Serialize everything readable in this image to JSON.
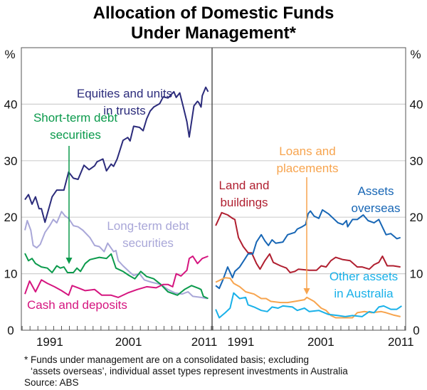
{
  "chart_data": {
    "type": "line",
    "title": [
      "Allocation of Domestic Funds",
      "Under Management*"
    ],
    "ylabel_left": "%",
    "ylabel_right": "%",
    "ylim": [
      0,
      50
    ],
    "yticks": [
      0,
      10,
      20,
      30,
      40
    ],
    "xlim": [
      1987.4,
      2011.6
    ],
    "xtick_labels": [
      "1991",
      "2001",
      "2011"
    ],
    "xticks": [
      1991,
      2001,
      2011
    ],
    "grid": true,
    "footnotes": [
      "*   Funds under management are on a consolidated basis; excluding",
      "‘assets overseas’, individual asset types represent investments in Australia",
      "Source: ABS"
    ],
    "panels": [
      {
        "name": "left",
        "series": [
          {
            "name": "Equities and units in trusts",
            "label": [
              "Equities and units",
              "in trusts"
            ],
            "color": "#2b2b7b",
            "x": [
              1987.85,
              1988.3,
              1988.75,
              1989.2,
              1989.65,
              1989.95,
              1990.4,
              1991.3,
              1991.9,
              1992.5,
              1992.8,
              1993.4,
              1994.0,
              1994.6,
              1995.35,
              1996.0,
              1996.7,
              1997.0,
              1997.75,
              1998.2,
              1998.8,
              1999.1,
              1999.55,
              2000.3,
              2000.9,
              2001.2,
              2001.65,
              2002.4,
              2002.85,
              2003.3,
              2003.75,
              2004.2,
              2004.95,
              2005.4,
              2006.0,
              2006.75,
              2007.05,
              2007.5,
              2007.95,
              2008.4,
              2008.7,
              2009.3,
              2009.75,
              2009.9,
              2010.2,
              2010.35,
              2010.8,
              2011.1
            ],
            "y": [
              23.1,
              24.0,
              22.3,
              23.6,
              21.5,
              21.5,
              19.1,
              23.6,
              24.8,
              24.8,
              24.8,
              28.0,
              26.9,
              26.7,
              29.2,
              28.4,
              29.1,
              29.8,
              30.3,
              28.2,
              29.4,
              29.0,
              30.3,
              33.6,
              34.1,
              33.5,
              36.1,
              35.9,
              35.3,
              37.4,
              38.8,
              39.5,
              40.1,
              41.3,
              41.1,
              42.2,
              41.2,
              42.0,
              39.5,
              36.9,
              34.2,
              39.7,
              40.5,
              40.3,
              39.5,
              41.5,
              43.0,
              42.2
            ]
          },
          {
            "name": "Long-term debt securities",
            "label": [
              "Long-term debt",
              "securities"
            ],
            "color": "#a9a7d8",
            "x": [
              1987.85,
              1988.15,
              1988.6,
              1988.9,
              1989.35,
              1989.8,
              1990.4,
              1991.0,
              1991.45,
              1991.9,
              1992.5,
              1992.95,
              1993.4,
              1994.0,
              1994.6,
              1995.2,
              1996.1,
              1996.7,
              1997.3,
              1997.9,
              1998.35,
              1999.1,
              1999.4,
              1999.7,
              2000.3,
              2001.05,
              2001.65,
              2002.4,
              2003.0,
              2003.9,
              2005.1,
              2006.0,
              2006.9,
              2007.8,
              2008.55,
              2009.15,
              2010.2,
              2010.95
            ],
            "y": [
              17.7,
              19.4,
              17.7,
              15.0,
              14.6,
              15.2,
              17.3,
              18.5,
              19.6,
              19.0,
              21.0,
              20.2,
              19.8,
              18.5,
              18.3,
              17.7,
              16.4,
              15.0,
              14.8,
              13.9,
              15.4,
              13.9,
              14.1,
              12.3,
              11.4,
              10.4,
              9.7,
              10.0,
              8.9,
              8.5,
              8.1,
              7.2,
              6.6,
              6.4,
              6.8,
              6.0,
              5.8,
              5.6
            ]
          },
          {
            "name": "Short-term debt securities",
            "label": [
              "Short-term debt",
              "securities"
            ],
            "color": "#0b9a4c",
            "x": [
              1987.85,
              1988.3,
              1988.75,
              1989.2,
              1989.95,
              1990.7,
              1991.3,
              1991.9,
              1992.35,
              1992.8,
              1993.25,
              1994.0,
              1994.45,
              1994.9,
              1995.5,
              1996.1,
              1997.3,
              1998.2,
              1998.8,
              1999.4,
              2000.3,
              2001.05,
              2001.8,
              2002.55,
              2003.3,
              2004.2,
              2005.1,
              2006.0,
              2007.2,
              2008.1,
              2009.0,
              2009.9,
              2010.2,
              2010.5,
              2011.1
            ],
            "y": [
              13.6,
              12.3,
              12.7,
              11.8,
              11.2,
              11.0,
              10.2,
              11.4,
              11.0,
              11.2,
              10.2,
              10.2,
              11.0,
              10.4,
              11.8,
              12.5,
              12.9,
              12.7,
              13.5,
              11.0,
              10.4,
              9.7,
              9.1,
              10.4,
              9.5,
              9.1,
              8.1,
              6.8,
              6.2,
              7.2,
              7.9,
              7.4,
              7.2,
              6.0,
              5.6
            ]
          },
          {
            "name": "Cash and deposits",
            "label": [
              "Cash and deposits"
            ],
            "color": "#d5157f",
            "x": [
              1987.85,
              1988.45,
              1989.2,
              1989.95,
              1990.7,
              1991.6,
              1992.5,
              1993.4,
              1993.85,
              1994.6,
              1995.5,
              1996.7,
              1997.6,
              1998.8,
              1999.7,
              2000.9,
              2002.1,
              2003.3,
              2004.5,
              2005.4,
              2006.0,
              2006.6,
              2007.05,
              2007.65,
              2008.4,
              2008.7,
              2009.15,
              2009.75,
              2010.35,
              2011.1
            ],
            "y": [
              6.4,
              8.7,
              6.8,
              8.9,
              8.3,
              7.7,
              7.0,
              6.2,
              7.9,
              7.5,
              7.0,
              7.2,
              6.2,
              6.2,
              5.8,
              6.6,
              7.2,
              7.7,
              7.5,
              8.1,
              8.1,
              7.7,
              10.0,
              9.6,
              10.6,
              12.7,
              13.1,
              11.8,
              12.7,
              13.1
            ]
          }
        ]
      },
      {
        "name": "right",
        "series": [
          {
            "name": "Land and buildings",
            "label": [
              "Land and",
              "buildings"
            ],
            "color": "#b01f30",
            "x": [
              1987.85,
              1988.6,
              1989.35,
              1989.95,
              1990.25,
              1990.7,
              1991.3,
              1991.9,
              1992.35,
              1992.95,
              1993.4,
              1994.0,
              1994.6,
              1995.05,
              1995.95,
              1996.7,
              1997.15,
              1997.75,
              1998.2,
              1999.55,
              2000.45,
              2001.05,
              2001.65,
              2002.25,
              2002.85,
              2003.75,
              2004.65,
              2005.55,
              2006.15,
              2007.05,
              2007.65,
              2008.25,
              2008.7,
              2009.3,
              2010.05,
              2010.95
            ],
            "y": [
              18.5,
              20.8,
              20.4,
              19.8,
              19.6,
              16.4,
              14.8,
              13.7,
              13.7,
              11.8,
              10.8,
              12.3,
              13.5,
              12.0,
              11.4,
              11.0,
              10.2,
              10.4,
              10.8,
              10.6,
              10.6,
              11.4,
              11.2,
              12.3,
              12.9,
              12.5,
              12.3,
              11.2,
              11.2,
              10.8,
              11.6,
              12.0,
              13.1,
              11.4,
              11.4,
              11.2
            ]
          },
          {
            "name": "Assets overseas",
            "label": [
              "Assets",
              "overseas"
            ],
            "color": "#1766b5",
            "x": [
              1987.85,
              1988.3,
              1988.75,
              1989.35,
              1989.95,
              1990.25,
              1990.85,
              1991.45,
              1991.9,
              1992.5,
              1992.95,
              1993.55,
              1994.0,
              1994.45,
              1994.9,
              1995.35,
              1996.25,
              1996.85,
              1997.75,
              1998.05,
              1998.65,
              1999.1,
              1999.4,
              1999.7,
              2000.15,
              2000.75,
              2001.2,
              2001.95,
              2002.55,
              2003.15,
              2003.75,
              2004.2,
              2004.35,
              2004.95,
              2005.55,
              2006.3,
              2006.9,
              2007.65,
              2008.25,
              2009.15,
              2009.75,
              2010.5,
              2010.95
            ],
            "y": [
              7.9,
              7.4,
              8.9,
              11.2,
              9.3,
              10.4,
              11.2,
              12.5,
              13.5,
              13.5,
              15.6,
              16.9,
              15.8,
              15.0,
              16.0,
              15.4,
              15.6,
              16.9,
              17.3,
              17.9,
              18.3,
              18.7,
              20.6,
              21.1,
              20.2,
              19.8,
              21.3,
              20.6,
              19.8,
              19.0,
              18.7,
              19.4,
              18.3,
              19.6,
              19.6,
              20.4,
              19.4,
              19.0,
              19.6,
              16.9,
              17.1,
              16.2,
              16.4
            ]
          },
          {
            "name": "Loans and placements",
            "label": [
              "Loans and",
              "placements"
            ],
            "color": "#f7a44e",
            "x": [
              1987.85,
              1988.45,
              1989.05,
              1989.65,
              1990.1,
              1990.85,
              1991.6,
              1992.65,
              1993.55,
              1994.15,
              1994.75,
              1995.95,
              1996.85,
              1997.75,
              1998.95,
              1999.25,
              2000.15,
              2001.05,
              2001.65,
              2002.25,
              2002.85,
              2004.05,
              2004.95,
              2005.55,
              2006.45,
              2007.35,
              2008.55,
              2009.15,
              2010.05,
              2010.95
            ],
            "y": [
              8.5,
              8.9,
              9.3,
              9.2,
              8.3,
              7.7,
              6.8,
              6.4,
              5.6,
              5.6,
              5.1,
              4.9,
              4.9,
              5.1,
              5.4,
              5.8,
              5.1,
              3.9,
              3.5,
              2.6,
              2.2,
              2.2,
              2.2,
              3.1,
              3.3,
              3.1,
              3.3,
              3.1,
              2.7,
              2.4
            ]
          },
          {
            "name": "Other assets in Australia",
            "label": [
              "Other assets",
              "in Australia"
            ],
            "color": "#19b1e9",
            "x": [
              1987.85,
              1988.3,
              1989.05,
              1989.65,
              1990.1,
              1990.85,
              1991.6,
              1991.9,
              1992.65,
              1993.55,
              1994.3,
              1994.9,
              1995.65,
              1996.25,
              1997.45,
              1998.05,
              1998.95,
              1999.55,
              2000.75,
              2001.95,
              2003.15,
              2004.05,
              2004.95,
              2006.15,
              2007.05,
              2007.65,
              2008.25,
              2008.85,
              2009.75,
              2010.5,
              2011.1
            ],
            "y": [
              3.7,
              2.2,
              3.1,
              3.9,
              6.6,
              5.6,
              5.8,
              4.5,
              4.1,
              3.5,
              3.3,
              4.1,
              3.9,
              4.3,
              4.1,
              3.5,
              3.9,
              3.3,
              3.5,
              2.8,
              2.6,
              2.4,
              2.6,
              2.4,
              3.3,
              3.1,
              4.1,
              4.3,
              3.7,
              3.7,
              4.3
            ]
          }
        ]
      }
    ]
  }
}
